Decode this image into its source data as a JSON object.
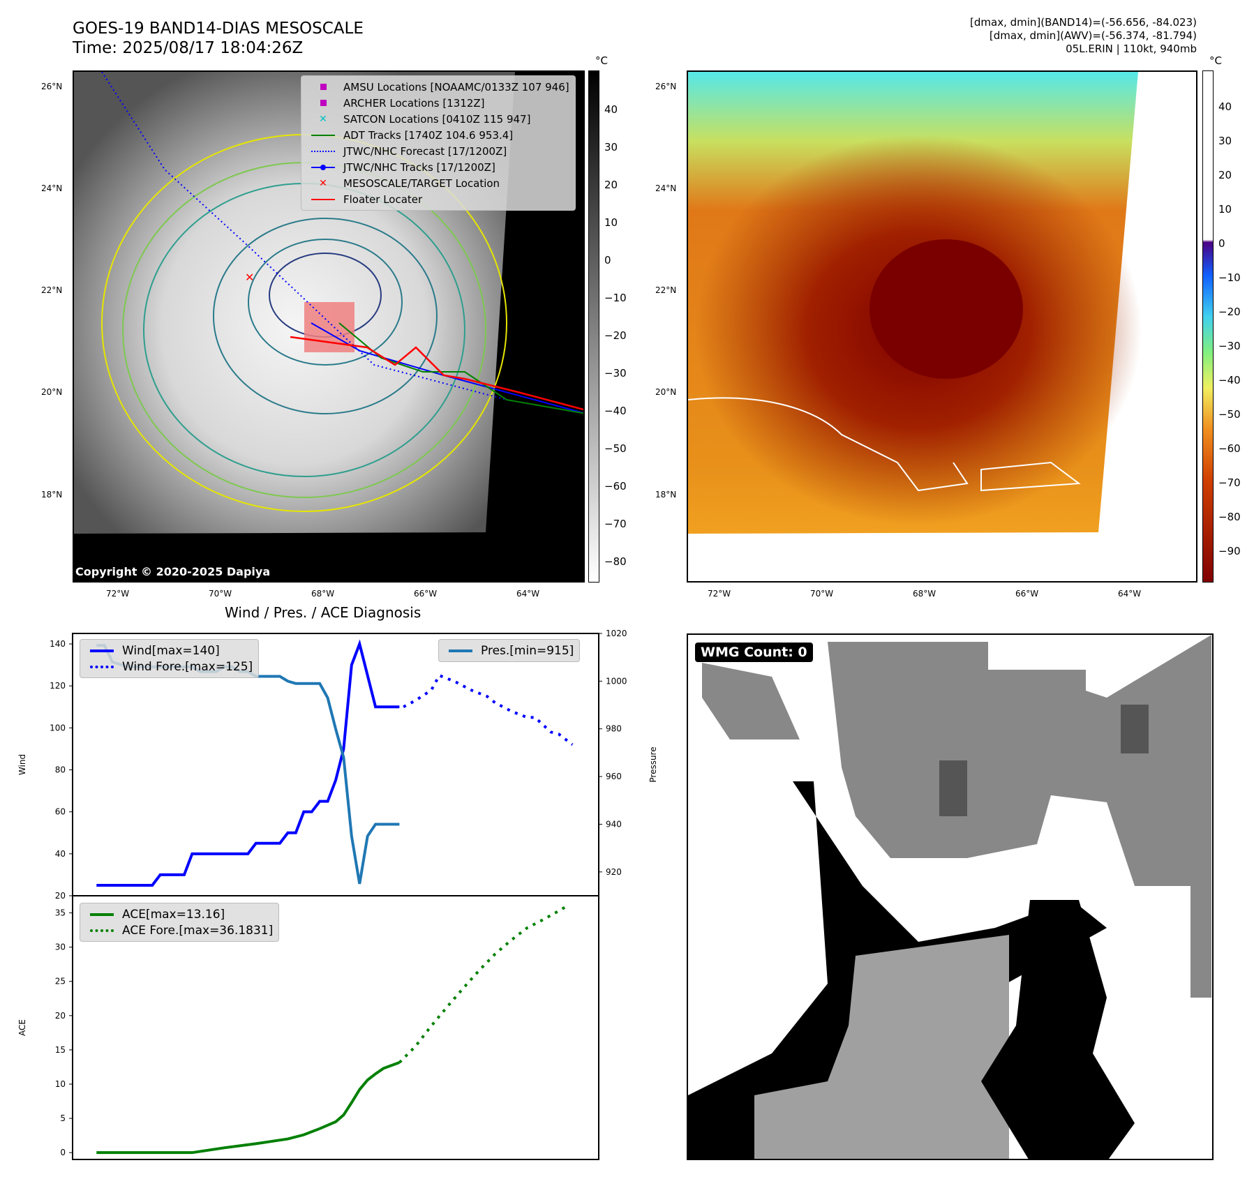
{
  "header": {
    "title": "GOES-19 BAND14-DIAS MESOSCALE",
    "time": "Time: 2025/08/17 18:04:26Z"
  },
  "info": {
    "line1": "[dmax, dmin](BAND14)=(-56.656, -84.023)",
    "line2": "[dmax, dmin](AWV)=(-56.374, -81.794)",
    "line3": "05L.ERIN | 110kt, 940mb"
  },
  "map": {
    "lat_ticks": [
      "26°N",
      "24°N",
      "22°N",
      "20°N",
      "18°N"
    ],
    "lon_ticks": [
      "72°W",
      "70°W",
      "68°W",
      "66°W",
      "64°W"
    ],
    "copyright": "Copyright © 2020-2025 Dapiya",
    "unit": "°C",
    "cbar1_ticks": [
      "40",
      "30",
      "20",
      "10",
      "0",
      "−10",
      "−20",
      "−30",
      "−40",
      "−50",
      "−60",
      "−70",
      "−80"
    ],
    "cbar2_ticks": [
      "40",
      "30",
      "20",
      "10",
      "0",
      "−10",
      "−20",
      "−30",
      "−40",
      "−50",
      "−60",
      "−70",
      "−80",
      "−90"
    ],
    "legend": [
      {
        "label": "AMSU Locations [NOAAMC/0133Z 107 946]",
        "icon": "square-marker",
        "color": "#c000c0"
      },
      {
        "label": "ARCHER Locations [1312Z]",
        "icon": "square-marker",
        "color": "#c000c0"
      },
      {
        "label": "SATCON Locations [0410Z 115 947]",
        "icon": "x-marker",
        "color": "#00c0c0"
      },
      {
        "label": "ADT Tracks [1740Z 104.6 953.4]",
        "icon": "solid-line",
        "color": "#008000"
      },
      {
        "label": "JTWC/NHC Forecast [17/1200Z]",
        "icon": "dotted-line",
        "color": "#0000ff"
      },
      {
        "label": "JTWC/NHC Tracks [17/1200Z]",
        "icon": "line-dot",
        "color": "#0000ff"
      },
      {
        "label": "MESOSCALE/TARGET Location",
        "icon": "x-marker",
        "color": "#ff0000"
      },
      {
        "label": "Floater Locater",
        "icon": "solid-line",
        "color": "#ff0000"
      }
    ]
  },
  "wmg": {
    "label": "WMG Count: 0"
  },
  "chart_data": [
    {
      "type": "line",
      "title": "Wind / Pres. / ACE Diagnosis",
      "ylabel": "Wind",
      "y2label": "Pressure",
      "ylim": [
        20,
        145
      ],
      "y2lim": [
        910,
        1020
      ],
      "xlim": [
        -3,
        63
      ],
      "yticks": [
        20,
        40,
        60,
        80,
        100,
        120,
        140
      ],
      "y2ticks": [
        920,
        940,
        960,
        980,
        1000,
        1020
      ],
      "series": [
        {
          "name": "Wind[max=140]",
          "color": "#0000ff",
          "style": "solid",
          "axis": "left",
          "x": [
            0,
            1,
            2,
            3,
            4,
            5,
            6,
            7,
            8,
            9,
            10,
            11,
            12,
            13,
            14,
            15,
            16,
            17,
            18,
            19,
            20,
            21,
            22,
            23,
            24,
            25,
            26,
            27,
            28,
            29,
            30,
            31,
            32,
            33,
            34,
            35,
            36,
            37,
            38
          ],
          "y": [
            25,
            25,
            25,
            25,
            25,
            25,
            25,
            25,
            30,
            30,
            30,
            30,
            40,
            40,
            40,
            40,
            40,
            40,
            40,
            40,
            45,
            45,
            45,
            45,
            50,
            50,
            60,
            60,
            65,
            65,
            75,
            90,
            130,
            140,
            125,
            110,
            110,
            110,
            110
          ]
        },
        {
          "name": "Wind Fore.[max=125]",
          "color": "#0000ff",
          "style": "dotted",
          "axis": "left",
          "x": [
            38.5,
            40,
            42,
            43,
            45,
            47,
            49,
            50,
            52,
            54,
            55,
            57,
            58,
            59.7
          ],
          "y": [
            110,
            113,
            118,
            125,
            122,
            118,
            115,
            112,
            108,
            105,
            105,
            98,
            97,
            92
          ]
        },
        {
          "name": "Pres.[min=915]",
          "color": "#1f77b4",
          "style": "solid",
          "axis": "right",
          "x": [
            0,
            1,
            2,
            3,
            4,
            5,
            6,
            7,
            8,
            9,
            10,
            11,
            12,
            13,
            14,
            15,
            16,
            17,
            18,
            19,
            20,
            21,
            22,
            23,
            24,
            25,
            26,
            27,
            28,
            29,
            30,
            31,
            32,
            33,
            34,
            35,
            36,
            37,
            38
          ],
          "y": [
            1015,
            1015,
            1008,
            1007,
            1006,
            1006,
            1006,
            1006,
            1006,
            1006,
            1006,
            1006,
            1006,
            1004,
            1004,
            1004,
            1006,
            1006,
            1004,
            1004,
            1002,
            1002,
            1002,
            1002,
            1000,
            999,
            999,
            999,
            999,
            993,
            980,
            968,
            935,
            915,
            935,
            940,
            940,
            940,
            940
          ]
        }
      ]
    },
    {
      "type": "line",
      "ylabel": "ACE",
      "ylim": [
        -1,
        37.5
      ],
      "xlim": [
        -3,
        63
      ],
      "yticks": [
        0,
        5,
        10,
        15,
        20,
        25,
        30,
        35
      ],
      "series": [
        {
          "name": "ACE[max=13.16]",
          "color": "#008000",
          "style": "solid",
          "x": [
            0,
            4,
            8,
            12,
            16,
            20,
            24,
            26,
            28,
            30,
            31,
            32,
            33,
            34,
            35,
            36,
            38
          ],
          "y": [
            0,
            0,
            0,
            0,
            0.7,
            1.3,
            2,
            2.6,
            3.5,
            4.5,
            5.5,
            7.3,
            9.2,
            10.6,
            11.5,
            12.3,
            13.16
          ]
        },
        {
          "name": "ACE Fore.[max=36.1831]",
          "color": "#008000",
          "style": "dotted",
          "x": [
            38,
            40,
            42,
            44,
            46,
            48,
            50,
            52,
            54,
            56,
            58,
            59.3
          ],
          "y": [
            13.16,
            15.5,
            18.5,
            21.3,
            24,
            26.6,
            29,
            31,
            32.8,
            34,
            35.3,
            36.18
          ]
        }
      ]
    }
  ]
}
